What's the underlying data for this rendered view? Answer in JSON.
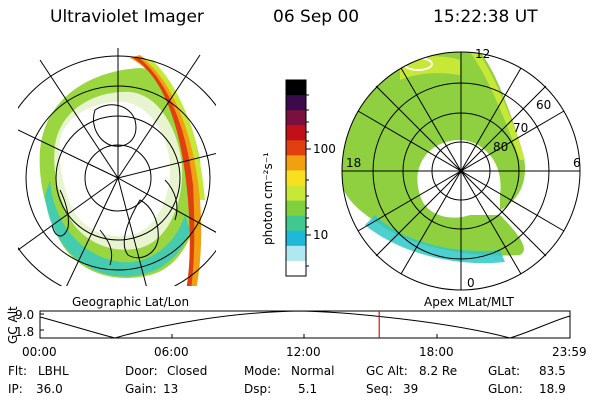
{
  "header": {
    "instrument": "Ultraviolet Imager",
    "date": "06 Sep 00",
    "time": "15:22:38 UT"
  },
  "left_panel": {
    "caption": "Geographic Lat/Lon"
  },
  "colorbar": {
    "label": "photon cm⁻²s⁻¹",
    "tick_labels": [
      "100",
      "10"
    ],
    "colors": [
      "#000000",
      "#3a0a4a",
      "#7a1040",
      "#c01018",
      "#e04010",
      "#f0a010",
      "#f8e020",
      "#c8e838",
      "#80d040",
      "#40c890",
      "#20b8d8",
      "#b0e8f0",
      "#ffffff"
    ]
  },
  "right_panel": {
    "caption": "Apex MLat/MLT",
    "lat_labels": [
      "60",
      "70",
      "80"
    ],
    "mlt_labels": [
      "12",
      "18",
      "6",
      "0"
    ]
  },
  "altitude_plot": {
    "ylabel": "GC Alt",
    "yticks": [
      "9.0",
      "1.8"
    ],
    "xticks": [
      "00:00",
      "06:00",
      "12:00",
      "18:00",
      "23:59"
    ],
    "current_time_fraction": 0.64
  },
  "info": {
    "filter_label": "Flt:",
    "filter_value": "LBHL",
    "door_label": "Door:",
    "door_value": "Closed",
    "mode_label": "Mode:",
    "mode_value": "Normal",
    "gcalt_label": "GC Alt:",
    "gcalt_value": "8.2 Re",
    "glat_label": "GLat:",
    "glat_value": "83.5",
    "ip_label": "IP:",
    "ip_value": "36.0",
    "gain_label": "Gain:",
    "gain_value": "13",
    "dsp_label": "Dsp:",
    "dsp_value": "5.1",
    "seq_label": "Seq:",
    "seq_value": "39",
    "glon_label": "GLon:",
    "glon_value": "18.9"
  }
}
